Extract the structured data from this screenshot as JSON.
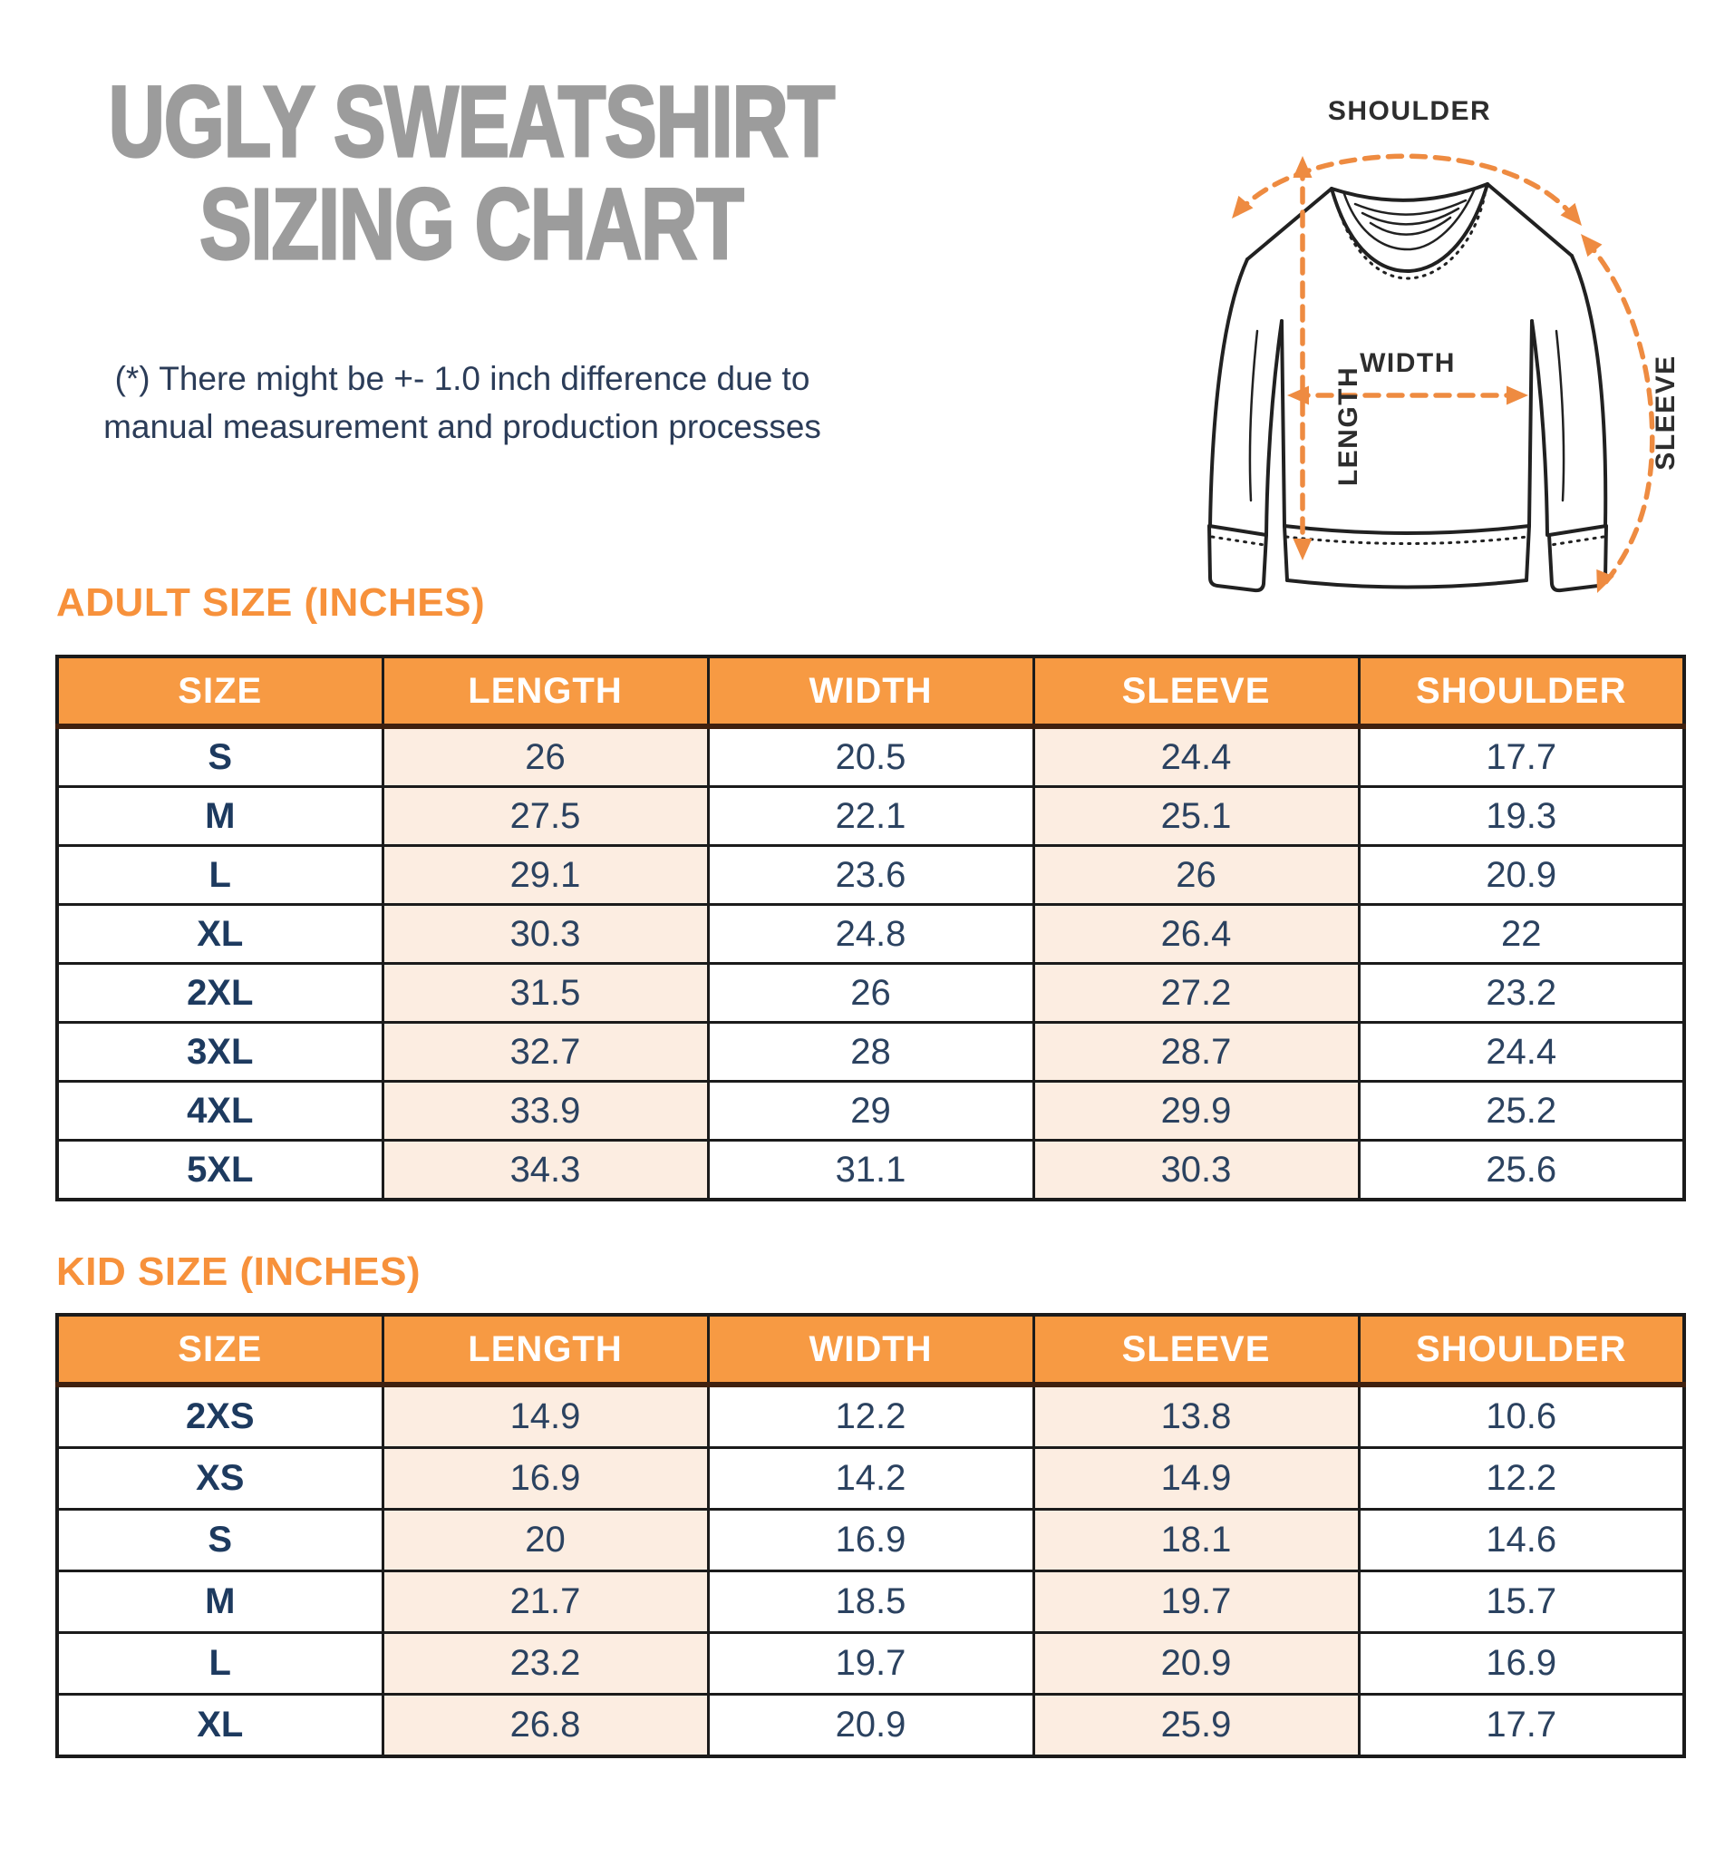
{
  "page_title": {
    "line1": "UGLY SWEATSHIRT",
    "line2": "SIZING CHART"
  },
  "note": {
    "line1": "(*) There might be +- 1.0 inch difference due to",
    "line2": "manual measurement and production processes"
  },
  "diagram": {
    "labels": {
      "shoulder": "SHOULDER",
      "width": "WIDTH",
      "length": "LENGTH",
      "sleeve": "SLEEVE"
    }
  },
  "adult_table": {
    "heading": "ADULT SIZE (INCHES)",
    "columns": [
      "SIZE",
      "LENGTH",
      "WIDTH",
      "SLEEVE",
      "SHOULDER"
    ],
    "rows": [
      [
        "S",
        "26",
        "20.5",
        "24.4",
        "17.7"
      ],
      [
        "M",
        "27.5",
        "22.1",
        "25.1",
        "19.3"
      ],
      [
        "L",
        "29.1",
        "23.6",
        "26",
        "20.9"
      ],
      [
        "XL",
        "30.3",
        "24.8",
        "26.4",
        "22"
      ],
      [
        "2XL",
        "31.5",
        "26",
        "27.2",
        "23.2"
      ],
      [
        "3XL",
        "32.7",
        "28",
        "28.7",
        "24.4"
      ],
      [
        "4XL",
        "33.9",
        "29",
        "29.9",
        "25.2"
      ],
      [
        "5XL",
        "34.3",
        "31.1",
        "30.3",
        "25.6"
      ]
    ]
  },
  "kid_table": {
    "heading": "KID SIZE (INCHES)",
    "columns": [
      "SIZE",
      "LENGTH",
      "WIDTH",
      "SLEEVE",
      "SHOULDER"
    ],
    "rows": [
      [
        "2XS",
        "14.9",
        "12.2",
        "13.8",
        "10.6"
      ],
      [
        "XS",
        "16.9",
        "14.2",
        "14.9",
        "12.2"
      ],
      [
        "S",
        "20",
        "16.9",
        "18.1",
        "14.6"
      ],
      [
        "M",
        "21.7",
        "18.5",
        "19.7",
        "15.7"
      ],
      [
        "L",
        "23.2",
        "19.7",
        "20.9",
        "16.9"
      ],
      [
        "XL",
        "26.8",
        "20.9",
        "25.9",
        "17.7"
      ]
    ]
  },
  "colors": {
    "header_orange": "#F79A43",
    "heading_orange": "#F7913B",
    "arrow_orange": "#EE8B41",
    "peach_cell": "#FCEDE1",
    "navy_text": "#2B4260",
    "title_gray": "#9C9C9C",
    "border_black": "#1B1B1B"
  },
  "chart_data": [
    {
      "type": "table",
      "title": "ADULT SIZE (INCHES)",
      "columns": [
        "SIZE",
        "LENGTH",
        "WIDTH",
        "SLEEVE",
        "SHOULDER"
      ],
      "rows": [
        [
          "S",
          26,
          20.5,
          24.4,
          17.7
        ],
        [
          "M",
          27.5,
          22.1,
          25.1,
          19.3
        ],
        [
          "L",
          29.1,
          23.6,
          26,
          20.9
        ],
        [
          "XL",
          30.3,
          24.8,
          26.4,
          22
        ],
        [
          "2XL",
          31.5,
          26,
          27.2,
          23.2
        ],
        [
          "3XL",
          32.7,
          28,
          28.7,
          24.4
        ],
        [
          "4XL",
          33.9,
          29,
          29.9,
          25.2
        ],
        [
          "5XL",
          34.3,
          31.1,
          30.3,
          25.6
        ]
      ]
    },
    {
      "type": "table",
      "title": "KID SIZE (INCHES)",
      "columns": [
        "SIZE",
        "LENGTH",
        "WIDTH",
        "SLEEVE",
        "SHOULDER"
      ],
      "rows": [
        [
          "2XS",
          14.9,
          12.2,
          13.8,
          10.6
        ],
        [
          "XS",
          16.9,
          14.2,
          14.9,
          12.2
        ],
        [
          "S",
          20,
          16.9,
          18.1,
          14.6
        ],
        [
          "M",
          21.7,
          18.5,
          19.7,
          15.7
        ],
        [
          "L",
          23.2,
          19.7,
          20.9,
          16.9
        ],
        [
          "XL",
          26.8,
          20.9,
          25.9,
          17.7
        ]
      ]
    }
  ]
}
